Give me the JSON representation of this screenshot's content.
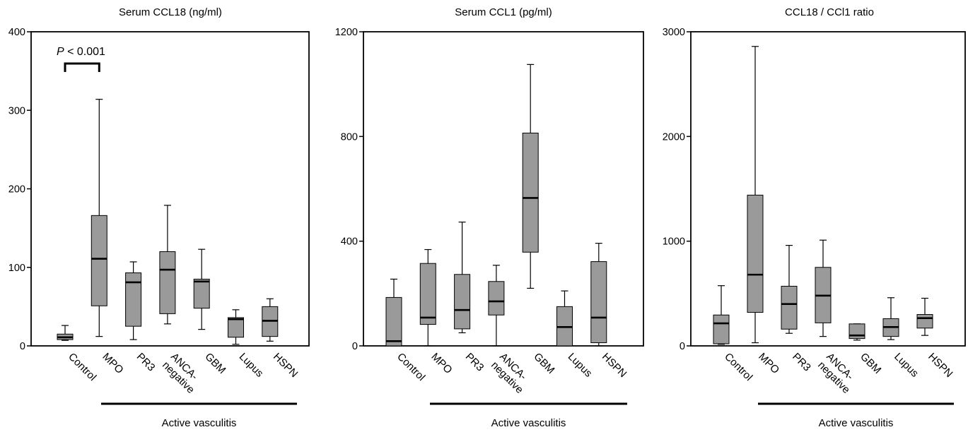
{
  "chart_data": [
    {
      "type": "box",
      "title": "Serum CCL18 (ng/ml)",
      "ylim": [
        0,
        400
      ],
      "yticks": [
        0,
        100,
        200,
        300,
        400
      ],
      "categories": [
        "Control",
        "MPO",
        "PR3",
        "ANCA-negative",
        "GBM",
        "Lupus",
        "HSPN"
      ],
      "category_label_lines": [
        [
          "Control"
        ],
        [
          "MPO"
        ],
        [
          "PR3"
        ],
        [
          "ANCA-",
          "negative"
        ],
        [
          "GBM"
        ],
        [
          "Lupus"
        ],
        [
          "HSPN"
        ]
      ],
      "boxes": [
        {
          "min": 7,
          "q1": 8,
          "median": 11,
          "q3": 15,
          "max": 26
        },
        {
          "min": 12,
          "q1": 51,
          "median": 111,
          "q3": 166,
          "max": 314
        },
        {
          "min": 8,
          "q1": 25,
          "median": 81,
          "q3": 93,
          "max": 107
        },
        {
          "min": 28,
          "q1": 41,
          "median": 97,
          "q3": 120,
          "max": 179
        },
        {
          "min": 21,
          "q1": 48,
          "median": 82,
          "q3": 85,
          "max": 123
        },
        {
          "min": 2,
          "q1": 11,
          "median": 34,
          "q3": 36,
          "max": 46
        },
        {
          "min": 6,
          "q1": 12,
          "median": 32,
          "q3": 50,
          "max": 60
        }
      ],
      "group_label": "Active vasculitis",
      "annotation": {
        "text": "P < 0.001",
        "italic_part": "P",
        "from_category": 0,
        "to_category": 1
      }
    },
    {
      "type": "box",
      "title": "Serum CCL1 (pg/ml)",
      "ylim": [
        0,
        1200
      ],
      "yticks": [
        0,
        400,
        800,
        1200
      ],
      "categories": [
        "Control",
        "MPO",
        "PR3",
        "ANCA-negative",
        "GBM",
        "Lupus",
        "HSPN"
      ],
      "category_label_lines": [
        [
          "Control"
        ],
        [
          "MPO"
        ],
        [
          "PR3"
        ],
        [
          "ANCA-",
          "negative"
        ],
        [
          "GBM"
        ],
        [
          "Lupus"
        ],
        [
          "HSPN"
        ]
      ],
      "boxes": [
        {
          "min": 0,
          "q1": 0,
          "median": 18,
          "q3": 185,
          "max": 255
        },
        {
          "min": 0,
          "q1": 82,
          "median": 108,
          "q3": 315,
          "max": 368
        },
        {
          "min": 50,
          "q1": 65,
          "median": 137,
          "q3": 273,
          "max": 473
        },
        {
          "min": 0,
          "q1": 118,
          "median": 170,
          "q3": 246,
          "max": 308
        },
        {
          "min": 220,
          "q1": 358,
          "median": 565,
          "q3": 813,
          "max": 1075
        },
        {
          "min": 0,
          "q1": 0,
          "median": 72,
          "q3": 150,
          "max": 210
        },
        {
          "min": 0,
          "q1": 12,
          "median": 108,
          "q3": 322,
          "max": 392
        }
      ],
      "group_label": "Active vasculitis"
    },
    {
      "type": "box",
      "title": "CCL18 / CCl1 ratio",
      "ylim": [
        0,
        3000
      ],
      "yticks": [
        0,
        1000,
        2000,
        3000
      ],
      "categories": [
        "Control",
        "MPO",
        "PR3",
        "ANCA-negative",
        "GBM",
        "Lupus",
        "HSPN"
      ],
      "category_label_lines": [
        [
          "Control"
        ],
        [
          "MPO"
        ],
        [
          "PR3"
        ],
        [
          "ANCA-",
          "negative"
        ],
        [
          "GBM"
        ],
        [
          "Lupus"
        ],
        [
          "HSPN"
        ]
      ],
      "boxes": [
        {
          "min": 15,
          "q1": 20,
          "median": 215,
          "q3": 295,
          "max": 575
        },
        {
          "min": 30,
          "q1": 320,
          "median": 680,
          "q3": 1440,
          "max": 2860
        },
        {
          "min": 120,
          "q1": 160,
          "median": 400,
          "q3": 570,
          "max": 960
        },
        {
          "min": 90,
          "q1": 220,
          "median": 480,
          "q3": 750,
          "max": 1010
        },
        {
          "min": 55,
          "q1": 70,
          "median": 100,
          "q3": 210,
          "max": 210
        },
        {
          "min": 60,
          "q1": 90,
          "median": 180,
          "q3": 260,
          "max": 460
        },
        {
          "min": 100,
          "q1": 170,
          "median": 265,
          "q3": 300,
          "max": 455
        }
      ],
      "group_label": "Active vasculitis"
    }
  ]
}
